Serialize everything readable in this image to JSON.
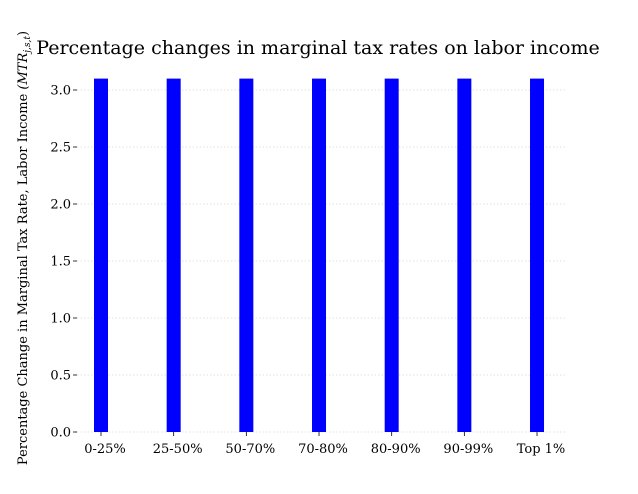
{
  "chart_data": {
    "type": "bar",
    "title": "Percentage changes in marginal tax rates on labor income",
    "xlabel": "",
    "ylabel": "Percentage Change in Marginal Tax Rate, Labor Income",
    "ylabel_math": "(MTR",
    "ylabel_math_sub": "j,s,t",
    "ylabel_math_close": ")",
    "categories": [
      "0-25%",
      "25-50%",
      "50-70%",
      "70-80%",
      "80-90%",
      "90-99%",
      "Top 1%"
    ],
    "values": [
      3.1,
      3.1,
      3.1,
      3.1,
      3.1,
      3.1,
      3.1
    ],
    "ylim": [
      0,
      3.1
    ],
    "yticks": [
      0.0,
      0.5,
      1.0,
      1.5,
      2.0,
      2.5,
      3.0
    ],
    "ytick_labels": [
      "0.0",
      "0.5",
      "1.0",
      "1.5",
      "2.0",
      "2.5",
      "3.0"
    ],
    "grid": true,
    "bar_color": "#0000ff"
  }
}
